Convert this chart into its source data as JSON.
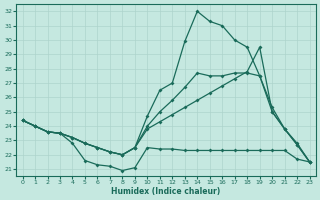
{
  "xlabel": "Humidex (Indice chaleur)",
  "xlim": [
    -0.5,
    23.5
  ],
  "ylim": [
    20.5,
    32.5
  ],
  "yticks": [
    21,
    22,
    23,
    24,
    25,
    26,
    27,
    28,
    29,
    30,
    31,
    32
  ],
  "xticks": [
    0,
    1,
    2,
    3,
    4,
    5,
    6,
    7,
    8,
    9,
    10,
    11,
    12,
    13,
    14,
    15,
    16,
    17,
    18,
    19,
    20,
    21,
    22,
    23
  ],
  "bg_color": "#c5e8e0",
  "line_color": "#1a6b5a",
  "grid_color": "#aed4cc",
  "line1_x": [
    0,
    1,
    2,
    3,
    4,
    5,
    6,
    7,
    8,
    9,
    10,
    11,
    12,
    13,
    14,
    15,
    16,
    17,
    18,
    19,
    20,
    21,
    22,
    23
  ],
  "line1_y": [
    24.4,
    24.0,
    23.6,
    23.5,
    22.8,
    21.6,
    21.3,
    21.2,
    20.9,
    21.1,
    22.5,
    22.4,
    22.4,
    22.3,
    22.3,
    22.3,
    22.3,
    22.3,
    22.3,
    22.3,
    22.3,
    22.3,
    21.7,
    21.5
  ],
  "line2_x": [
    0,
    1,
    2,
    3,
    4,
    5,
    6,
    7,
    8,
    9,
    10,
    11,
    12,
    13,
    14,
    15,
    16,
    17,
    18,
    19,
    20,
    21,
    22,
    23
  ],
  "line2_y": [
    24.4,
    24.0,
    23.6,
    23.5,
    23.2,
    22.8,
    22.5,
    22.2,
    22.0,
    22.5,
    24.7,
    26.5,
    27.0,
    29.9,
    32.0,
    31.3,
    31.0,
    30.0,
    29.5,
    27.5,
    25.0,
    23.8,
    22.8,
    21.5
  ],
  "line3_x": [
    0,
    1,
    2,
    3,
    4,
    5,
    6,
    7,
    8,
    9,
    10,
    11,
    12,
    13,
    14,
    15,
    16,
    17,
    18,
    19,
    20,
    21,
    22,
    23
  ],
  "line3_y": [
    24.4,
    24.0,
    23.6,
    23.5,
    23.2,
    22.8,
    22.5,
    22.2,
    22.0,
    22.5,
    24.0,
    25.0,
    25.8,
    26.7,
    27.7,
    27.5,
    27.5,
    27.7,
    27.7,
    27.5,
    25.3,
    23.8,
    22.7,
    21.5
  ],
  "line4_x": [
    0,
    1,
    2,
    3,
    4,
    5,
    6,
    7,
    8,
    9,
    10,
    11,
    12,
    13,
    14,
    15,
    16,
    17,
    18,
    19,
    20,
    21,
    22,
    23
  ],
  "line4_y": [
    24.4,
    24.0,
    23.6,
    23.5,
    23.2,
    22.8,
    22.5,
    22.2,
    22.0,
    22.5,
    23.8,
    24.3,
    24.8,
    25.3,
    25.8,
    26.3,
    26.8,
    27.3,
    27.8,
    29.5,
    25.0,
    23.8,
    22.7,
    21.5
  ]
}
